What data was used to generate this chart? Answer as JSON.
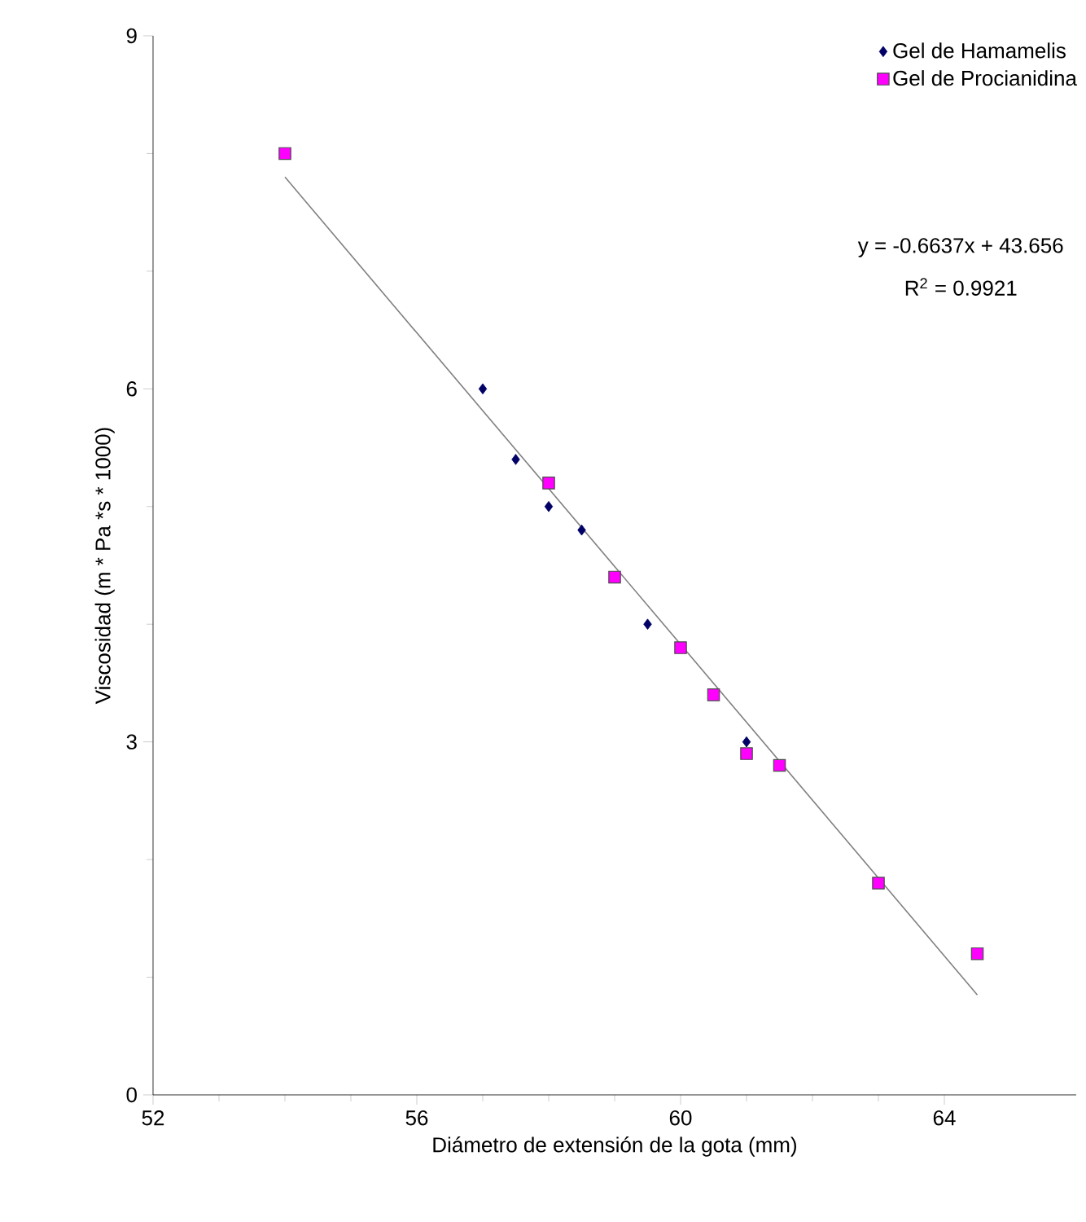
{
  "chart_data": {
    "type": "scatter",
    "xlabel": "Diámetro de extensión de la gota (mm)",
    "ylabel": "Viscosidad (m * Pa *s * 1000)",
    "xlim": [
      52,
      66
    ],
    "ylim": [
      0,
      9
    ],
    "xticks": [
      52,
      56,
      60,
      64
    ],
    "yticks": [
      0,
      3,
      6,
      9
    ],
    "grid": false,
    "legend": "top right",
    "series": [
      {
        "name": "Gel de Hamamelis",
        "color": "#000066",
        "marker": "diamond",
        "x": [
          57,
          57.5,
          58,
          58.5,
          59.5,
          61
        ],
        "values": [
          6,
          5.4,
          5,
          4.8,
          4,
          3
        ]
      },
      {
        "name": "Gel de Procianidina",
        "color": "#ff00ff",
        "marker": "square",
        "x": [
          54,
          58,
          59,
          60,
          60.5,
          61,
          61.5,
          63,
          64.5
        ],
        "values": [
          8,
          5.2,
          4.4,
          3.8,
          3.4,
          2.9,
          2.8,
          1.8,
          1.2
        ]
      },
      {
        "type": "line",
        "color": "#808080",
        "marker": "none",
        "x": [
          54,
          64.5
        ],
        "values": [
          7.8,
          0.85
        ]
      }
    ],
    "annotations": [
      "y = -0.6637x + 43.656",
      "R$^{2}$ = 0.9921"
    ]
  }
}
